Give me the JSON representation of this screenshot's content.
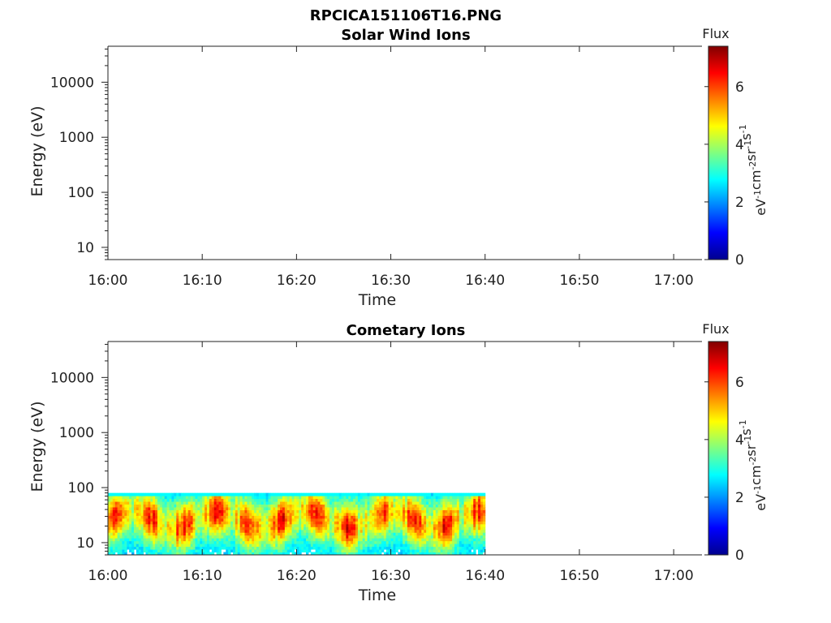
{
  "figure": {
    "title": "RPCICA151106T16.PNG"
  },
  "chart_data": [
    {
      "type": "heatmap",
      "title": "Solar Wind Ions",
      "xlabel": "Time",
      "ylabel": "Energy (eV)",
      "x_ticks": [
        "16:00",
        "16:10",
        "16:20",
        "16:30",
        "16:40",
        "16:50",
        "17:00"
      ],
      "x_range": [
        "16:00",
        "17:03"
      ],
      "y_scale": "log",
      "y_ticks": [
        "10",
        "100",
        "1000",
        "10000"
      ],
      "y_range": [
        6,
        45000
      ],
      "colorbar": {
        "title": "Flux",
        "label": "eV-1cm-2sr-1s-1",
        "label_parts": [
          [
            "eV",
            "-1"
          ],
          [
            "cm",
            "-2"
          ],
          [
            "sr",
            "-1"
          ],
          [
            "s",
            "-1"
          ]
        ],
        "ticks": [
          "0",
          "2",
          "4",
          "6"
        ],
        "range": [
          0,
          7.4
        ],
        "colormap": "jet"
      },
      "data_present": false
    },
    {
      "type": "heatmap",
      "title": "Cometary Ions",
      "xlabel": "Time",
      "ylabel": "Energy (eV)",
      "x_ticks": [
        "16:00",
        "16:10",
        "16:20",
        "16:30",
        "16:40",
        "16:50",
        "17:00"
      ],
      "x_range": [
        "16:00",
        "17:03"
      ],
      "y_scale": "log",
      "y_ticks": [
        "10",
        "100",
        "1000",
        "10000"
      ],
      "y_range": [
        6,
        45000
      ],
      "colorbar": {
        "title": "Flux",
        "label": "eV-1cm-2sr-1s-1",
        "label_parts": [
          [
            "eV",
            "-1"
          ],
          [
            "cm",
            "-2"
          ],
          [
            "sr",
            "-1"
          ],
          [
            "s",
            "-1"
          ]
        ],
        "ticks": [
          "0",
          "2",
          "4",
          "6"
        ],
        "range": [
          0,
          7.4
        ],
        "colormap": "jet"
      },
      "data_present": true,
      "data_time_range": [
        "16:00",
        "16:40"
      ],
      "data_energy_range_eV": [
        6,
        80
      ],
      "peak_energy_eV": 25,
      "peak_flux_level": 6.3,
      "background_flux_level": 2.5
    }
  ]
}
